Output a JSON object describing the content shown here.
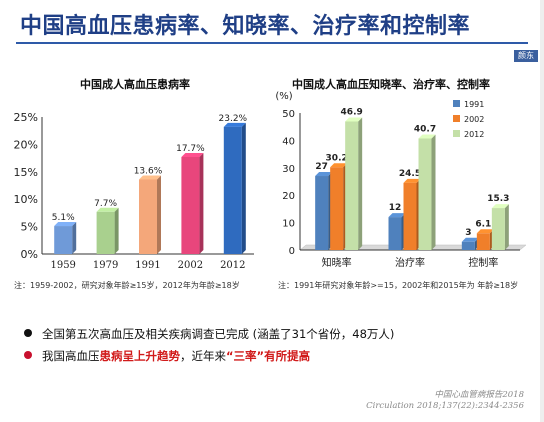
{
  "page": {
    "title": "中国高血压患病率、知晓率、治疗率和控制率",
    "corner_tab": "颜东",
    "bullets": [
      {
        "text": "全国第五次高血压及相关疾病调查已完成 (涵盖了31个省份，48万人)"
      },
      {
        "prefix": "我国高血压",
        "highlight1": "患病呈上升趋势",
        "middle": "，近年来",
        "highlight2": "“三率”有所提高"
      }
    ],
    "source_line1": "中国心血管病报告2018",
    "source_line2": "Circulation 2018;137(22):2344-2356"
  },
  "chart_data": [
    {
      "type": "bar",
      "title": "中国成人高血压患病率",
      "categories": [
        "1959",
        "1979",
        "1991",
        "2002",
        "2012"
      ],
      "values": [
        5.1,
        7.7,
        13.6,
        17.7,
        23.2
      ],
      "value_labels": [
        "5.1%",
        "7.7%",
        "13.6%",
        "17.7%",
        "23.2%"
      ],
      "colors": [
        "#6f9ad8",
        "#a9d08e",
        "#f4a77a",
        "#e8467c",
        "#2f6bbf"
      ],
      "yticks": [
        "0%",
        "5%",
        "10%",
        "15%",
        "20%",
        "25%"
      ],
      "ylim": [
        0,
        25
      ],
      "note": "注：1959-2002，研究对象年龄≥15岁，2012年为年龄≥18岁"
    },
    {
      "type": "bar",
      "title": "中国成人高血压知晓率、治疗率、控制率",
      "ylabel": "(%)",
      "categories": [
        "知晓率",
        "治疗率",
        "控制率"
      ],
      "series": [
        {
          "name": "1991",
          "color": "#4f81bd",
          "values": [
            27,
            12,
            3
          ],
          "labels": [
            "27",
            "12",
            "3"
          ]
        },
        {
          "name": "2002",
          "color": "#f07f2a",
          "values": [
            30.2,
            24.5,
            6.1
          ],
          "labels": [
            "30.2",
            "24.5",
            "6.1"
          ]
        },
        {
          "name": "2012",
          "color": "#c4e0a8",
          "values": [
            46.9,
            40.7,
            15.3
          ],
          "labels": [
            "46.9",
            "40.7",
            "15.3"
          ]
        }
      ],
      "yticks": [
        "0",
        "10",
        "20",
        "30",
        "40",
        "50"
      ],
      "ylim": [
        0,
        50
      ],
      "legend_position": "top-right",
      "note": "注：1991年研究对象年龄>=15，2002年和2015年为 年龄≥18岁"
    }
  ]
}
